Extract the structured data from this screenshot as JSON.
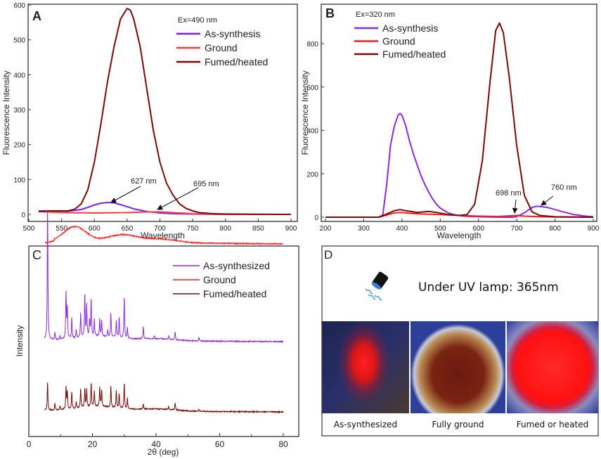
{
  "chart_data": [
    {
      "panel": "A",
      "type": "line",
      "xlabel": "Wavelength",
      "ylabel": "Fluorescence Intensity",
      "xlim": [
        500,
        900
      ],
      "ylim": [
        0,
        600
      ],
      "xticks": [
        500,
        550,
        600,
        650,
        700,
        750,
        800,
        850,
        900
      ],
      "yticks": [
        0,
        100,
        200,
        300,
        400,
        500,
        600
      ],
      "legend_title": "Ex=490 nm",
      "legend_position": "top-right",
      "series": [
        {
          "name": "As-synthesis",
          "color": "#7b1fff",
          "x": [
            515,
            560,
            580,
            590,
            600,
            610,
            620,
            630,
            640,
            650,
            660,
            670,
            680,
            690,
            700,
            720,
            750,
            800,
            900
          ],
          "y": [
            10,
            9,
            14,
            20,
            27,
            32,
            34,
            33,
            28,
            22,
            16,
            12,
            8,
            6,
            4,
            2,
            1,
            0,
            0
          ]
        },
        {
          "name": "Ground",
          "color": "#ff3b3b",
          "x": [
            515,
            550,
            600,
            650,
            680,
            700,
            720,
            750,
            780,
            800,
            900
          ],
          "y": [
            8,
            5,
            4,
            5,
            7,
            7,
            5,
            2,
            1,
            0,
            0
          ]
        },
        {
          "name": "Fumed/heated",
          "color": "#7a0a0a",
          "x": [
            515,
            530,
            560,
            570,
            580,
            590,
            600,
            610,
            620,
            630,
            640,
            650,
            655,
            660,
            670,
            680,
            690,
            700,
            710,
            720,
            730,
            740,
            750,
            760,
            780,
            800,
            900
          ],
          "y": [
            8,
            10,
            10,
            15,
            30,
            70,
            150,
            260,
            380,
            480,
            560,
            590,
            585,
            560,
            480,
            360,
            240,
            150,
            90,
            55,
            30,
            17,
            10,
            5,
            2,
            1,
            0
          ]
        }
      ],
      "annotations": [
        "627 nm",
        "695 nm"
      ]
    },
    {
      "panel": "B",
      "type": "line",
      "xlabel": "Wavelength",
      "ylabel": "Fluorescence Intensity",
      "xlim": [
        200,
        900
      ],
      "ylim": [
        0,
        900
      ],
      "xticks": [
        200,
        300,
        400,
        500,
        600,
        700,
        800,
        900
      ],
      "yticks": [
        0,
        200,
        400,
        600,
        800
      ],
      "legend_title": "Ex=320 nm",
      "legend_position": "top-left",
      "series": [
        {
          "name": "As-synthesis",
          "color": "#8a2be2",
          "x": [
            200,
            340,
            350,
            360,
            370,
            380,
            390,
            395,
            400,
            410,
            420,
            430,
            440,
            450,
            460,
            470,
            480,
            490,
            500,
            520,
            540,
            560,
            600,
            650,
            690,
            700,
            720,
            740,
            750,
            760,
            780,
            800,
            820,
            850,
            880,
            900
          ],
          "y": [
            0,
            0,
            10,
            150,
            330,
            420,
            470,
            478,
            470,
            420,
            350,
            290,
            240,
            190,
            150,
            115,
            85,
            60,
            42,
            20,
            10,
            5,
            2,
            0,
            0,
            3,
            20,
            45,
            50,
            50,
            45,
            35,
            25,
            12,
            5,
            2
          ]
        },
        {
          "name": "Ground",
          "color": "#ff1a1a",
          "x": [
            200,
            340,
            360,
            380,
            400,
            420,
            450,
            500,
            550,
            600,
            650,
            700,
            720,
            750,
            800,
            900
          ],
          "y": [
            0,
            0,
            10,
            20,
            22,
            18,
            15,
            12,
            8,
            5,
            3,
            8,
            5,
            3,
            1,
            0
          ]
        },
        {
          "name": "Fumed/heated",
          "color": "#7a0a0a",
          "x": [
            200,
            340,
            360,
            380,
            395,
            410,
            440,
            470,
            490,
            520,
            550,
            570,
            590,
            610,
            630,
            645,
            655,
            665,
            680,
            700,
            720,
            740,
            760,
            800,
            900
          ],
          "y": [
            0,
            0,
            15,
            30,
            35,
            30,
            22,
            27,
            22,
            12,
            8,
            12,
            60,
            260,
            620,
            860,
            895,
            850,
            650,
            330,
            100,
            25,
            8,
            2,
            0
          ]
        }
      ],
      "annotations": [
        "698 nm",
        "760 nm"
      ]
    },
    {
      "panel": "C",
      "type": "line",
      "xlabel": "2θ (deg)",
      "ylabel": "Intensity",
      "xlim": [
        0,
        85
      ],
      "xticks": [
        0,
        20,
        40,
        60,
        80
      ],
      "legend_position": "top-right",
      "series": [
        {
          "name": "As-synthesized",
          "color": "#8a2be2",
          "offset": 70,
          "x_range": [
            5,
            80
          ],
          "peaks": [
            [
              5.9,
              190
            ],
            [
              8.2,
              10
            ],
            [
              9.8,
              6
            ],
            [
              11.7,
              67
            ],
            [
              12.1,
              45
            ],
            [
              13.5,
              30
            ],
            [
              14.9,
              12
            ],
            [
              16.3,
              35
            ],
            [
              17.6,
              64
            ],
            [
              18.2,
              45
            ],
            [
              19.1,
              22
            ],
            [
              19.6,
              55
            ],
            [
              20.6,
              25
            ],
            [
              22.3,
              25
            ],
            [
              22.9,
              22
            ],
            [
              24.8,
              10
            ],
            [
              25.8,
              33
            ],
            [
              27.5,
              25
            ],
            [
              28.4,
              30
            ],
            [
              30.0,
              62
            ],
            [
              31.0,
              15
            ],
            [
              36.0,
              18
            ],
            [
              39.5,
              4
            ],
            [
              44.0,
              5
            ],
            [
              46.0,
              12
            ],
            [
              53.5,
              5
            ]
          ]
        },
        {
          "name": "Ground",
          "color": "#ff1a1a",
          "offset": 140,
          "x_range": [
            5,
            80
          ],
          "humps": [
            [
              14.5,
              22
            ],
            [
              29.5,
              11
            ],
            [
              42,
              5
            ]
          ]
        },
        {
          "name": "Fumed/heated",
          "color": "#7a0a0a",
          "offset": 20,
          "x_range": [
            5,
            80
          ],
          "peaks": [
            [
              5.9,
              40
            ],
            [
              8.2,
              10
            ],
            [
              9.8,
              6
            ],
            [
              11.7,
              32
            ],
            [
              12.1,
              25
            ],
            [
              13.5,
              25
            ],
            [
              14.9,
              10
            ],
            [
              16.3,
              28
            ],
            [
              17.6,
              28
            ],
            [
              18.2,
              26
            ],
            [
              19.6,
              35
            ],
            [
              20.6,
              22
            ],
            [
              22.3,
              28
            ],
            [
              22.9,
              24
            ],
            [
              25.8,
              30
            ],
            [
              27.5,
              25
            ],
            [
              28.4,
              22
            ],
            [
              30.0,
              38
            ],
            [
              31.0,
              15
            ],
            [
              36.0,
              8
            ],
            [
              44.0,
              4
            ],
            [
              46.0,
              10
            ],
            [
              53.5,
              3
            ]
          ]
        }
      ]
    }
  ],
  "panel_labels": {
    "a": "A",
    "b": "B",
    "c": "C",
    "d": "D"
  },
  "panel_d": {
    "title": "Under UV lamp: 365nm",
    "icon": "uv-lamp-icon",
    "photos": [
      {
        "caption": "As-synthesized"
      },
      {
        "caption": "Fully ground"
      },
      {
        "caption": "Fumed or heated"
      }
    ]
  }
}
